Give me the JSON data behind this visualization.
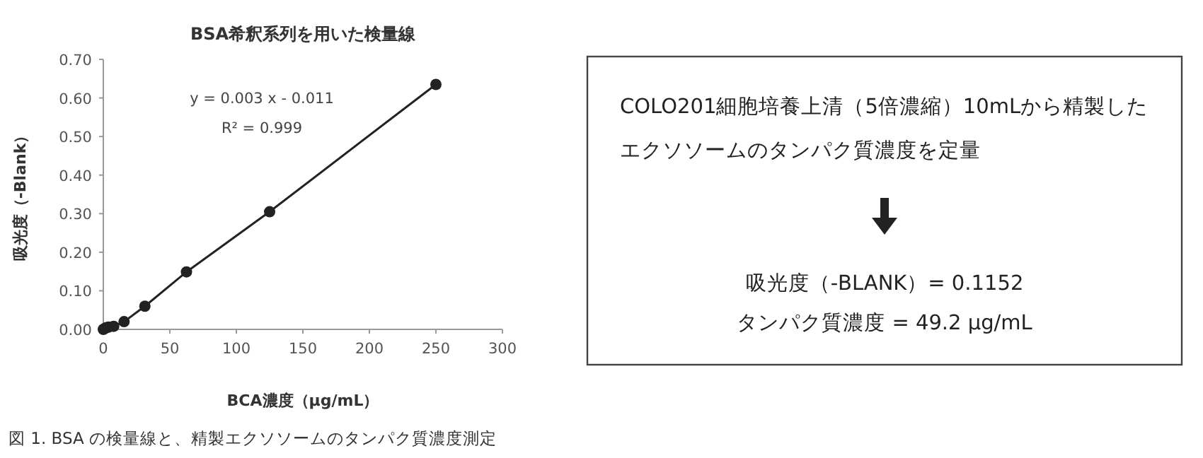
{
  "chart_data": [
    {
      "type": "line",
      "title": "BSA希釈系列を用いた検量線",
      "xlabel": "BCA濃度（μg/mL）",
      "ylabel": "吸光度（-Blank）",
      "x": [
        0,
        0.98,
        1.95,
        3.9,
        7.8,
        15.6,
        31.25,
        62.5,
        125,
        250
      ],
      "series": [
        {
          "color": "#222222",
          "values": [
            0.0,
            0.002,
            0.004,
            0.006,
            0.008,
            0.02,
            0.06,
            0.149,
            0.305,
            0.635
          ]
        }
      ],
      "xlim": [
        0,
        300
      ],
      "xticks": [
        0,
        50,
        100,
        150,
        200,
        250,
        300
      ],
      "ylim": [
        0,
        0.7
      ],
      "yticks": [
        {
          "value": 0,
          "label": "0.00"
        },
        {
          "value": 0.1,
          "label": "0.10"
        },
        {
          "value": 0.2,
          "label": "0.20"
        },
        {
          "value": 0.3,
          "label": "0.30"
        },
        {
          "value": 0.4,
          "label": "0.40"
        },
        {
          "value": 0.5,
          "label": "0.50"
        },
        {
          "value": 0.6,
          "label": "0.60"
        },
        {
          "value": 0.7,
          "label": "0.70"
        }
      ],
      "marker": "circle",
      "line_style": "solid",
      "annotations": [
        "y = 0.003 x - 0.011",
        "R² = 0.999",
        "図 1.  BSA の検量線と、精製エクソソームのタンパク質濃度測定"
      ]
    },
    {
      "type": "other",
      "annotations": [
        "COLO201細胞培養上清（5倍濃縮）10mLから精製した",
        "エクソソームのタンパク質濃度を定量",
        "吸光度（-BLANK）= 0.1152",
        "タンパク質濃度 = 49.2 μg/mL"
      ]
    }
  ]
}
